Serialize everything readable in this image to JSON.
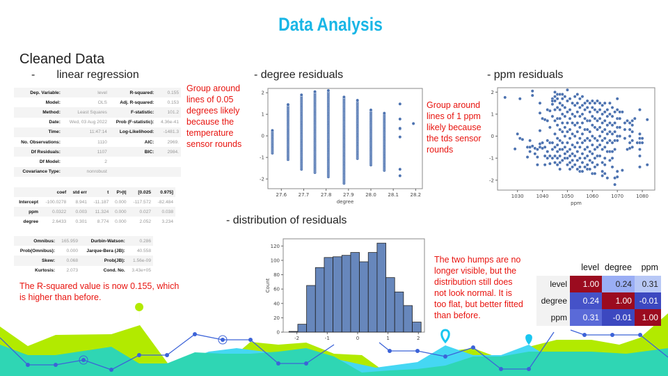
{
  "title": "Data Analysis",
  "section_title": "Cleaned Data",
  "subsections": {
    "linear_regression": "-       linear regression",
    "degree_residuals": "- degree residuals",
    "ppm_residuals": "- ppm residuals",
    "distribution": "- distribution of residuals"
  },
  "notes": {
    "degree": "Group around lines of 0.05 degrees likely because the temperature sensor rounds",
    "ppm": "Group around lines of 1 ppm likely because the tds sensor rounds",
    "r_squared": "The R-squared value is now 0.155, which is higher than before.",
    "distribution": "The two humps are no longer visible, but the distribution still does not look normal. It is too flat, but better fitted than before."
  },
  "ols_summary": {
    "rows": [
      [
        "Dep. Variable:",
        "level",
        "R-squared:",
        "0.155"
      ],
      [
        "Model:",
        "OLS",
        "Adj. R-squared:",
        "0.153"
      ],
      [
        "Method:",
        "Least Squares",
        "F-statistic:",
        "101.2"
      ],
      [
        "Date:",
        "Wed, 03 Aug 2022",
        "Prob (F-statistic):",
        "4.36e-41"
      ],
      [
        "Time:",
        "11:47:14",
        "Log-Likelihood:",
        "-1481.3"
      ],
      [
        "No. Observations:",
        "1110",
        "AIC:",
        "2969."
      ],
      [
        "Df Residuals:",
        "1107",
        "BIC:",
        "2984."
      ],
      [
        "Df Model:",
        "2",
        "",
        ""
      ],
      [
        "Covariance Type:",
        "nonrobust",
        "",
        ""
      ]
    ],
    "coef_header": [
      "",
      "coef",
      "std err",
      "t",
      "P>|t|",
      "[0.025",
      "0.975]"
    ],
    "coef_rows": [
      [
        "Intercept",
        "-100.0278",
        "8.941",
        "-11.187",
        "0.000",
        "-117.572",
        "-82.484"
      ],
      [
        "ppm",
        "0.0322",
        "0.003",
        "11.324",
        "0.000",
        "0.027",
        "0.038"
      ],
      [
        "degree",
        "2.6433",
        "0.301",
        "8.774",
        "0.000",
        "2.052",
        "3.234"
      ]
    ],
    "diag_rows": [
      [
        "Omnibus:",
        "165.959",
        "Durbin-Watson:",
        "0.286"
      ],
      [
        "Prob(Omnibus):",
        "0.000",
        "Jarque-Bera (JB):",
        "40.558"
      ],
      [
        "Skew:",
        "0.068",
        "Prob(JB):",
        "1.56e-09"
      ],
      [
        "Kurtosis:",
        "2.073",
        "Cond. No.",
        "3.43e+05"
      ]
    ]
  },
  "correlation": {
    "columns": [
      "level",
      "degree",
      "ppm"
    ],
    "rows": [
      {
        "label": "level",
        "values": [
          "1.00",
          "0.24",
          "0.31"
        ],
        "colors": [
          "#9b0b1f",
          "#9aaef5",
          "#b8c8f6"
        ]
      },
      {
        "label": "degree",
        "values": [
          "0.24",
          "1.00",
          "-0.01"
        ],
        "colors": [
          "#4552c8",
          "#9b0b1f",
          "#3c48c0"
        ]
      },
      {
        "label": "ppm",
        "values": [
          "0.31",
          "-0.01",
          "1.00"
        ],
        "colors": [
          "#5a6ad8",
          "#3c48c0",
          "#9b0b1f"
        ]
      }
    ]
  },
  "chart_data": [
    {
      "type": "scatter",
      "xlabel": "degree",
      "ylabel": "",
      "xlim": [
        27.54,
        28.23
      ],
      "ylim": [
        -2.45,
        2.2
      ],
      "xticks": [
        "27.6",
        "27.7",
        "27.8",
        "27.9",
        "28.0",
        "28.1",
        "28.2"
      ],
      "yticks": [
        "-2",
        "-1",
        "0",
        "1",
        "2"
      ],
      "color": "#4c72b0",
      "columns": [
        {
          "x": 27.56,
          "y_range": [
            -0.8,
            0.25
          ]
        },
        {
          "x": 27.63,
          "y_range": [
            -1.1,
            1.45
          ]
        },
        {
          "x": 27.69,
          "y_range": [
            -1.55,
            1.9
          ]
        },
        {
          "x": 27.75,
          "y_range": [
            -1.7,
            2.05
          ]
        },
        {
          "x": 27.81,
          "y_range": [
            -1.9,
            2.1
          ]
        },
        {
          "x": 27.88,
          "y_range": [
            -2.2,
            1.8
          ]
        },
        {
          "x": 27.94,
          "y_range": [
            -1.05,
            1.65
          ]
        },
        {
          "x": 28.0,
          "y_range": [
            -1.35,
            1.2
          ]
        },
        {
          "x": 28.06,
          "y_range": [
            -1.6,
            1.05
          ]
        },
        {
          "x": 28.13,
          "y": [
            -1.85,
            -1.55,
            -0.05,
            0.32,
            0.35,
            0.78,
            1.48
          ]
        },
        {
          "x": 28.19,
          "y": [
            0.57
          ]
        }
      ]
    },
    {
      "type": "scatter",
      "xlabel": "ppm",
      "ylabel": "",
      "xlim": [
        1022,
        1085
      ],
      "ylim": [
        -2.45,
        2.2
      ],
      "xticks": [
        "1030",
        "1040",
        "1050",
        "1060",
        "1070",
        "1080"
      ],
      "yticks": [
        "-2",
        "-1",
        "0",
        "1",
        "2"
      ],
      "color": "#4c72b0",
      "columns": [
        {
          "x": 1025,
          "y": [
            1.76
          ]
        },
        {
          "x": 1029,
          "y": [
            -0.58
          ]
        },
        {
          "x": 1030,
          "y": [
            0.1
          ]
        },
        {
          "x": 1031,
          "y": [
            1.7,
            -0.1
          ]
        },
        {
          "x": 1032,
          "y": [
            -0.15
          ]
        },
        {
          "x": 1034,
          "y": [
            -0.5,
            -0.95
          ]
        },
        {
          "x": 1035,
          "y": [
            -0.2,
            -0.5,
            -0.7
          ]
        },
        {
          "x": 1036,
          "y": [
            2.05,
            1.85,
            -0.45
          ]
        },
        {
          "x": 1037,
          "y": [
            -0.8,
            -0.55
          ]
        },
        {
          "x": 1038,
          "y": [
            -1.3,
            -0.95,
            -0.6
          ]
        },
        {
          "x": 1039,
          "y": [
            1.5,
            1.05,
            0.25,
            -0.35,
            -0.5
          ]
        },
        {
          "x": 1040,
          "y": [
            0.8,
            -0.3,
            -0.55
          ]
        },
        {
          "x": 1041,
          "y": [
            0.75,
            -0.5,
            -0.9,
            -1.3
          ]
        },
        {
          "x": 1042,
          "y": [
            1.2,
            0.7,
            -0.2,
            -0.7,
            -1.0
          ]
        },
        {
          "x": 1043,
          "y": [
            1.15,
            0.4,
            -0.3,
            -0.9,
            -1.25
          ]
        },
        {
          "x": 1044,
          "y": [
            1.7,
            1.6,
            1.45,
            0.9,
            -0.3,
            -0.6,
            -1.0
          ]
        },
        {
          "x": 1045,
          "y": [
            2.0,
            1.8,
            1.6,
            1.2,
            0.7,
            0.1,
            -0.5,
            -0.9,
            -1.2
          ]
        },
        {
          "x": 1046,
          "y": [
            1.9,
            1.7,
            1.3,
            0.8,
            0.5,
            -0.1,
            -0.4,
            -0.7,
            -1.0,
            -1.3
          ]
        },
        {
          "x": 1047,
          "y": [
            1.9,
            1.5,
            1.2,
            0.8,
            0.3,
            -0.2,
            -0.6,
            -0.9,
            -1.2,
            -1.5
          ]
        },
        {
          "x": 1048,
          "y": [
            1.9,
            1.7,
            1.4,
            1.0,
            0.6,
            0.2,
            -0.3,
            -0.6,
            -1.1
          ]
        },
        {
          "x": 1049,
          "y": [
            1.8,
            1.3,
            0.9,
            0.4,
            0.0,
            -0.5,
            -0.8,
            -1.0
          ]
        },
        {
          "x": 1050,
          "y": [
            2.1,
            1.6,
            1.1,
            0.6,
            0.2,
            -0.3,
            -0.7,
            -1.0,
            -1.3
          ]
        },
        {
          "x": 1051,
          "y": [
            1.7,
            1.2,
            0.8,
            0.3,
            -0.1,
            -0.6,
            -0.9,
            -1.2,
            -1.5
          ]
        },
        {
          "x": 1052,
          "y": [
            1.5,
            1.0,
            0.6,
            0.1,
            -0.4,
            -0.8,
            -1.1,
            -1.4
          ]
        },
        {
          "x": 1053,
          "y": [
            1.8,
            1.4,
            0.9,
            0.5,
            0.0,
            -0.5,
            -0.9,
            -1.3
          ]
        },
        {
          "x": 1054,
          "y": [
            1.9,
            1.5,
            1.1,
            0.6,
            0.2,
            -0.3,
            -0.7,
            -1.1,
            -1.5
          ]
        },
        {
          "x": 1055,
          "y": [
            1.7,
            1.3,
            0.9,
            0.4,
            -0.1,
            -0.5,
            -1.0,
            -1.4,
            -1.6
          ]
        },
        {
          "x": 1056,
          "y": [
            1.8,
            1.4,
            1.0,
            0.6,
            0.1,
            -0.3,
            -0.8,
            -1.2,
            -1.6
          ]
        },
        {
          "x": 1057,
          "y": [
            1.5,
            1.2,
            0.8,
            0.3,
            -0.2,
            -0.6,
            -1.0,
            -1.4
          ]
        },
        {
          "x": 1058,
          "y": [
            1.6,
            1.3,
            0.7,
            0.3,
            -0.1,
            -0.5,
            -0.9,
            -1.3,
            -1.5
          ]
        },
        {
          "x": 1059,
          "y": [
            1.5,
            1.1,
            0.7,
            0.2,
            -0.2,
            -0.7,
            -1.1,
            -1.5
          ]
        },
        {
          "x": 1060,
          "y": [
            1.6,
            1.3,
            0.9,
            0.5,
            0.0,
            -0.4,
            -0.8,
            -1.2,
            -1.7
          ]
        },
        {
          "x": 1061,
          "y": [
            1.5,
            1.2,
            0.8,
            0.4,
            -0.1,
            -0.6,
            -1.0,
            -1.4,
            -1.7
          ]
        },
        {
          "x": 1062,
          "y": [
            1.6,
            1.1,
            0.7,
            0.3,
            -0.2,
            -0.5,
            -0.9,
            -1.3
          ]
        },
        {
          "x": 1063,
          "y": [
            1.5,
            1.2,
            0.8,
            0.4,
            0.0,
            -0.4,
            -0.9
          ]
        },
        {
          "x": 1064,
          "y": [
            1.4,
            1.0,
            0.6,
            0.2,
            -0.2,
            -0.6,
            -1.2,
            -1.6,
            -1.8
          ]
        },
        {
          "x": 1065,
          "y": [
            1.5,
            1.1,
            0.7,
            0.3,
            -0.1,
            -0.5,
            -1.0,
            -1.3,
            -1.7
          ]
        },
        {
          "x": 1066,
          "y": [
            1.2,
            0.9,
            0.5,
            0.1,
            -0.3,
            -0.7,
            -1.9
          ]
        },
        {
          "x": 1067,
          "y": [
            1.5,
            1.0,
            0.6,
            0.2,
            -0.2,
            -0.7,
            -1.1
          ]
        },
        {
          "x": 1068,
          "y": [
            1.3,
            0.9,
            0.5,
            0.1,
            -0.3,
            -0.7,
            -1.0,
            -1.4
          ]
        },
        {
          "x": 1069,
          "y": [
            1.1,
            0.6,
            0.2,
            -0.2,
            -0.6,
            -1.9,
            -2.2
          ]
        },
        {
          "x": 1070,
          "y": [
            1.7,
            1.2,
            0.8,
            0.4,
            0.0,
            -0.2,
            -1.6,
            -1.85
          ]
        },
        {
          "x": 1071,
          "y": [
            1.1,
            0.8,
            0.4,
            0.0
          ]
        },
        {
          "x": 1072,
          "y": [
            1.1,
            -1.55
          ]
        },
        {
          "x": 1073,
          "y": [
            0.6,
            0.3,
            -0.1
          ]
        },
        {
          "x": 1074,
          "y": [
            0.7,
            -0.6
          ]
        },
        {
          "x": 1075,
          "y": [
            0.6,
            0.3,
            0.0,
            -0.3,
            -0.55
          ]
        },
        {
          "x": 1076,
          "y": [
            0.7,
            0.5,
            0.2,
            -0.2,
            -0.5
          ]
        },
        {
          "x": 1077,
          "y": [
            0.8
          ]
        },
        {
          "x": 1078,
          "y": [
            -0.3
          ]
        },
        {
          "x": 1079,
          "y": [
            1.2,
            0.1,
            -0.1,
            -0.3,
            -0.6,
            -0.9,
            -1.4
          ]
        },
        {
          "x": 1080,
          "y": [
            -0.1,
            -0.3
          ]
        },
        {
          "x": 1082,
          "y": [
            0.75,
            -1.3
          ]
        }
      ]
    },
    {
      "type": "bar",
      "subtype": "histogram",
      "xlabel": "",
      "ylabel": "Count",
      "xlim": [
        -2.45,
        2.2
      ],
      "ylim": [
        0,
        130
      ],
      "xticks": [
        "-2",
        "-1",
        "0",
        "1",
        "2"
      ],
      "yticks": [
        "0",
        "20",
        "40",
        "60",
        "80",
        "100",
        "120"
      ],
      "color": "#4c72b0",
      "bin_start": -2.26,
      "bin_width": 0.29,
      "values": [
        1,
        11,
        65,
        90,
        104,
        105,
        107,
        111,
        98,
        111,
        124,
        76,
        56,
        37,
        14
      ]
    }
  ]
}
